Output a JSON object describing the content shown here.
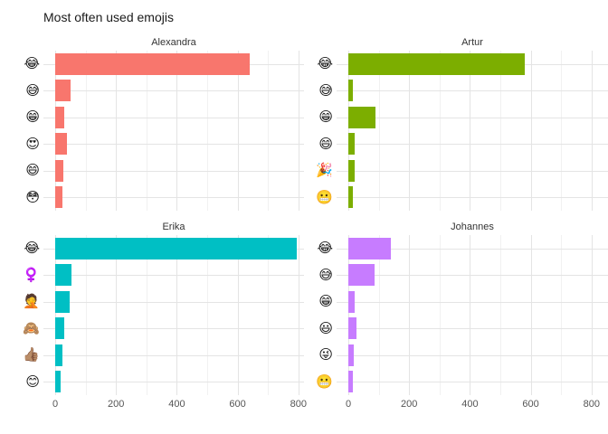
{
  "title": "Most often used emojis",
  "chart_data": {
    "type": "bar",
    "orientation": "horizontal",
    "title": "Most often used emojis",
    "xlabel": "",
    "ylabel": "",
    "xlim": [
      0,
      820
    ],
    "x_ticks": [
      0,
      200,
      400,
      600,
      800
    ],
    "x_minor_gridlines_every": 100,
    "grid": "on",
    "legend": "none",
    "facets": [
      {
        "label": "Alexandra",
        "color": "#F8766D",
        "bars": [
          {
            "emoji": "😂",
            "name": "face-with-tears-of-joy",
            "value": 640
          },
          {
            "emoji": "😅",
            "name": "grinning-face-with-sweat",
            "value": 50
          },
          {
            "emoji": "😁",
            "name": "beaming-face-with-smiling-eyes",
            "value": 30
          },
          {
            "emoji": "😍",
            "name": "smiling-face-with-heart-eyes",
            "value": 38
          },
          {
            "emoji": "😄",
            "name": "grinning-face-with-smiling-eyes",
            "value": 28
          },
          {
            "emoji": "😳",
            "name": "flushed-face",
            "value": 24
          }
        ]
      },
      {
        "label": "Artur",
        "color": "#7CAE00",
        "bars": [
          {
            "emoji": "😂",
            "name": "face-with-tears-of-joy",
            "value": 580
          },
          {
            "emoji": "😅",
            "name": "grinning-face-with-sweat",
            "value": 15
          },
          {
            "emoji": "😁",
            "name": "beaming-face-with-smiling-eyes",
            "value": 88
          },
          {
            "emoji": "😄",
            "name": "grinning-face-with-smiling-eyes",
            "value": 22
          },
          {
            "emoji": "🎉",
            "name": "party-popper",
            "value": 20
          },
          {
            "emoji": "😬",
            "name": "grimacing-face",
            "value": 16
          }
        ]
      },
      {
        "label": "Erika",
        "color": "#00BFC4",
        "bars": [
          {
            "emoji": "😂",
            "name": "face-with-tears-of-joy",
            "value": 795
          },
          {
            "emoji": "♀️",
            "name": "female-sign",
            "value": 53
          },
          {
            "emoji": "🤦",
            "name": "person-facepalming",
            "value": 47
          },
          {
            "emoji": "🙈",
            "name": "see-no-evil-monkey",
            "value": 30
          },
          {
            "emoji": "👍🏽",
            "name": "thumbs-up-medium-skin-tone",
            "value": 24
          },
          {
            "emoji": "😊",
            "name": "smiling-face-with-smiling-eyes",
            "value": 18
          }
        ]
      },
      {
        "label": "Johannes",
        "color": "#C77CFF",
        "bars": [
          {
            "emoji": "😂",
            "name": "face-with-tears-of-joy",
            "value": 140
          },
          {
            "emoji": "😅",
            "name": "grinning-face-with-sweat",
            "value": 85
          },
          {
            "emoji": "😁",
            "name": "beaming-face-with-smiling-eyes",
            "value": 20
          },
          {
            "emoji": "😃",
            "name": "grinning-face-with-big-eyes",
            "value": 26
          },
          {
            "emoji": "😜",
            "name": "winking-face-with-tongue",
            "value": 17
          },
          {
            "emoji": "😬",
            "name": "grimacing-face",
            "value": 15
          }
        ]
      }
    ]
  }
}
